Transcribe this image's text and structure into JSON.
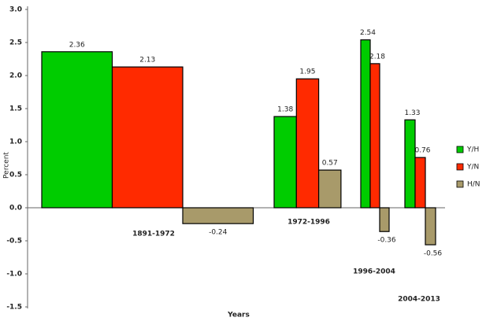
{
  "chart_data": {
    "type": "bar",
    "y_label": "Percent",
    "x_label": "Years",
    "categories": [
      "1891-1972",
      "1972-1996",
      "1996-2004",
      "2004-2013"
    ],
    "series": [
      {
        "name": "Y/H",
        "color": "#00cc00",
        "values": [
          2.36,
          1.38,
          2.54,
          1.33
        ]
      },
      {
        "name": "Y/N",
        "color": "#ff2a00",
        "values": [
          2.13,
          1.95,
          2.18,
          0.76
        ]
      },
      {
        "name": "H/N",
        "color": "#a89a6a",
        "values": [
          -0.24,
          0.57,
          -0.36,
          -0.56
        ]
      }
    ],
    "ylim": [
      -1.5,
      3
    ],
    "yticks": [
      {
        "value": -1.5,
        "label": "-1.5"
      },
      {
        "value": -1,
        "label": "-1.0"
      },
      -0.5,
      {
        "value": 0,
        "label": "0.0"
      },
      0.5,
      {
        "value": 1,
        "label": "1.0"
      },
      1.5,
      {
        "value": 2,
        "label": "2.0"
      },
      2.5,
      {
        "value": 3,
        "label": "3.0"
      }
    ],
    "legend": "right"
  }
}
